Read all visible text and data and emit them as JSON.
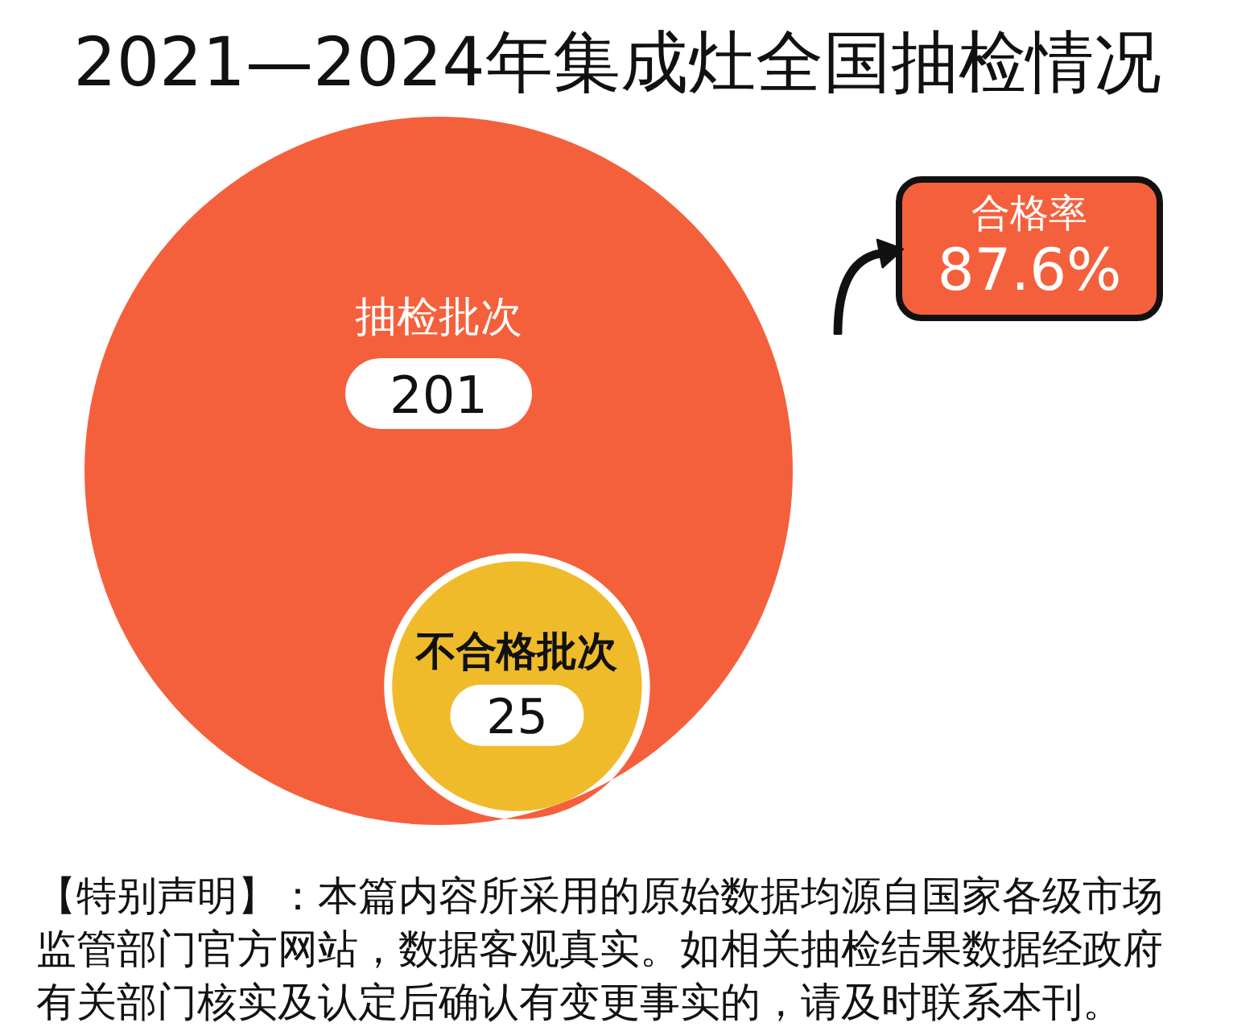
{
  "chart_data": {
    "type": "other",
    "title": "2021—2024年集成灶全国抽检情况",
    "categories": [
      "抽检批次",
      "不合格批次"
    ],
    "values": [
      201,
      25
    ],
    "colors": [
      "#f5603c",
      "#f0bb2b"
    ],
    "data_labels": true,
    "annotations": [
      "合格率\n87.6%",
      "【特别声明】：本篇内容所采用的原始数据均源自国家各级市场监管部门官方网站，数据客观真实。如相关抽检结果数据经政府有关部门核实及认定后确认有变更事实的，请及时联系本刊。"
    ]
  }
}
